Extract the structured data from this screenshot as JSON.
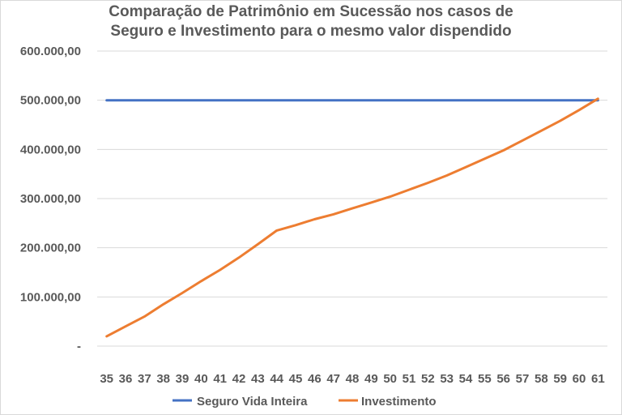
{
  "chart_data": {
    "type": "line",
    "title_lines": [
      "Comparação de Patrimônio em Sucessão nos casos de",
      "Seguro e Investimento para o mesmo valor dispendido"
    ],
    "xlabel": "",
    "ylabel": "",
    "x": [
      35,
      36,
      37,
      38,
      39,
      40,
      41,
      42,
      43,
      44,
      45,
      46,
      47,
      48,
      49,
      50,
      51,
      52,
      53,
      54,
      55,
      56,
      57,
      58,
      59,
      60,
      61
    ],
    "ylim": [
      0,
      600000
    ],
    "y_ticks": [
      0,
      100000,
      200000,
      300000,
      400000,
      500000,
      600000
    ],
    "y_tick_labels": [
      "-",
      "100.000,00",
      "200.000,00",
      "300.000,00",
      "400.000,00",
      "500.000,00",
      "600.000,00"
    ],
    "grid": true,
    "legend_position": "bottom",
    "series": [
      {
        "name": "Seguro Vida Inteira",
        "color": "#4472c4",
        "values": [
          500000,
          500000,
          500000,
          500000,
          500000,
          500000,
          500000,
          500000,
          500000,
          500000,
          500000,
          500000,
          500000,
          500000,
          500000,
          500000,
          500000,
          500000,
          500000,
          500000,
          500000,
          500000,
          500000,
          500000,
          500000,
          500000,
          500000
        ]
      },
      {
        "name": "Investimento",
        "color": "#ed7d31",
        "values": [
          20000,
          40000,
          60000,
          85000,
          108000,
          132000,
          155000,
          180000,
          207000,
          235000,
          246000,
          258000,
          268000,
          280000,
          292000,
          304000,
          318000,
          332000,
          347000,
          364000,
          381000,
          398000,
          418000,
          438000,
          458000,
          480000,
          503000
        ]
      }
    ]
  }
}
